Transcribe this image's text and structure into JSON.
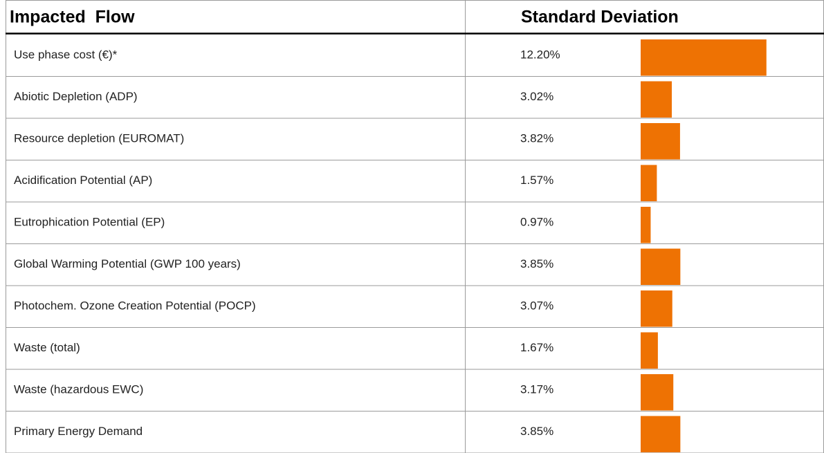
{
  "chart_data": {
    "type": "bar",
    "orientation": "horizontal",
    "column_headers": [
      "Impacted  Flow",
      "Standard Deviation"
    ],
    "categories": [
      "Use phase cost (€)*",
      "Abiotic Depletion (ADP)",
      "Resource depletion (EUROMAT)",
      "Acidification Potential (AP)",
      "Eutrophication Potential (EP)",
      "Global Warming Potential (GWP 100 years)",
      "Photochem. Ozone Creation Potential (POCP)",
      "Waste (total)",
      "Waste (hazardous EWC)",
      "Primary Energy Demand"
    ],
    "values": [
      12.2,
      3.02,
      3.82,
      1.57,
      0.97,
      3.85,
      3.07,
      1.67,
      3.17,
      3.85
    ],
    "value_labels": [
      "12.20%",
      "3.02%",
      "3.82%",
      "1.57%",
      "0.97%",
      "3.85%",
      "3.07%",
      "1.67%",
      "3.17%",
      "3.85%"
    ],
    "color": "#ee7203"
  }
}
